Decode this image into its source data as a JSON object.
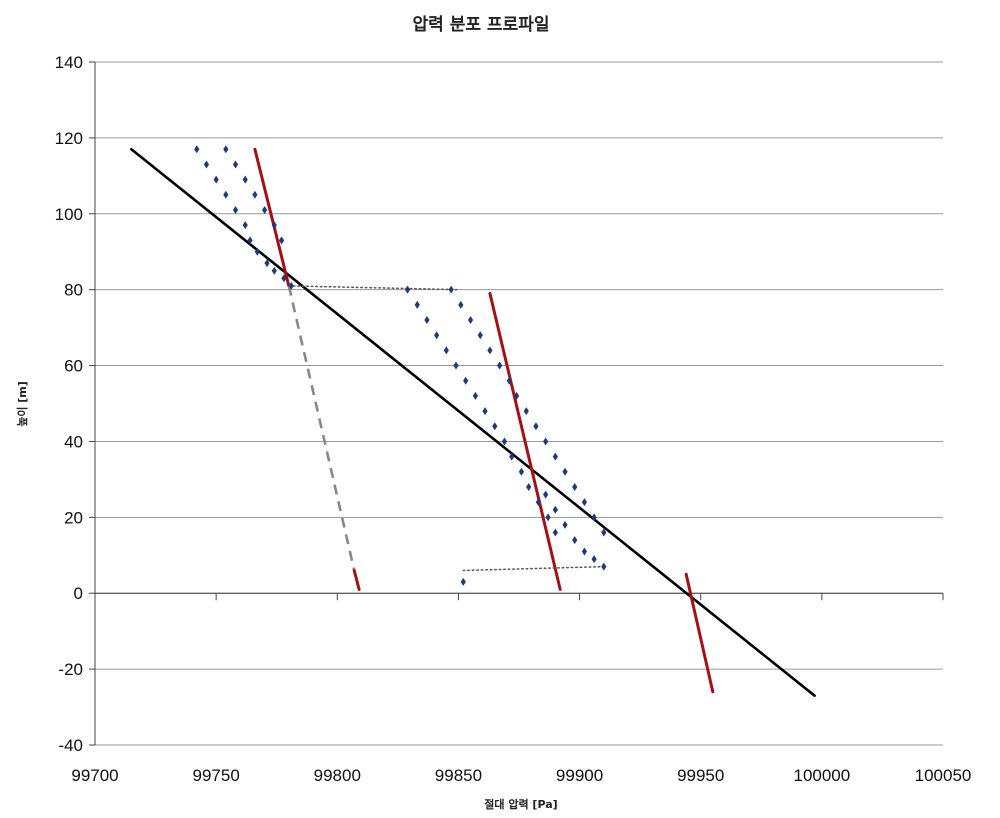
{
  "chart_data": {
    "type": "scatter",
    "title": "압력 분포 프로파일",
    "xlabel": "절대 압력 [Pa]",
    "ylabel": "높이 [m]",
    "xlim": [
      99700,
      100050
    ],
    "ylim": [
      -40,
      140
    ],
    "x_ticks": [
      99700,
      99750,
      99800,
      99850,
      99900,
      99950,
      100000,
      100050
    ],
    "y_ticks": [
      -40,
      -20,
      0,
      20,
      40,
      60,
      80,
      100,
      120,
      140
    ],
    "grid": "horizontal",
    "legend": "none",
    "colors": {
      "black_line": "#000000",
      "red_line": "#a50f15",
      "gray_dash": "#888888",
      "dot_markers": "#1f3a7a",
      "dotted_link": "#555555"
    },
    "series": [
      {
        "style": "line",
        "color": "#000000",
        "x": [
          99715,
          99997
        ],
        "y": [
          117,
          -27
        ]
      },
      {
        "style": "line",
        "color": "#a50f15",
        "x": [
          99766,
          99780
        ],
        "y": [
          117,
          81
        ]
      },
      {
        "style": "dashed",
        "color": "#888888",
        "x": [
          99780,
          99807
        ],
        "y": [
          81,
          6
        ]
      },
      {
        "style": "line",
        "color": "#a50f15",
        "x": [
          99807,
          99809
        ],
        "y": [
          6,
          1
        ]
      },
      {
        "style": "line",
        "color": "#a50f15",
        "x": [
          99863,
          99892
        ],
        "y": [
          79,
          1
        ]
      },
      {
        "style": "line",
        "color": "#a50f15",
        "x": [
          99944,
          99955
        ],
        "y": [
          5,
          -26
        ]
      },
      {
        "style": "dotted",
        "color": "#555555",
        "x": [
          99780,
          99850
        ],
        "y": [
          81,
          80
        ]
      },
      {
        "style": "dotted",
        "color": "#555555",
        "x": [
          99852,
          99910
        ],
        "y": [
          6,
          7
        ]
      },
      {
        "style": "markers",
        "color": "#1f3a7a",
        "x": [
          99742,
          99746,
          99750,
          99754,
          99758,
          99762,
          99764,
          99767,
          99771,
          99774,
          99778,
          99781
        ],
        "y": [
          117,
          113,
          109,
          105,
          101,
          97,
          93,
          90,
          87,
          85,
          83,
          81
        ]
      },
      {
        "style": "markers",
        "color": "#1f3a7a",
        "x": [
          99754,
          99758,
          99762,
          99766,
          99770,
          99774,
          99777
        ],
        "y": [
          117,
          113,
          109,
          105,
          101,
          97,
          93
        ]
      },
      {
        "style": "markers",
        "color": "#1f3a7a",
        "x": [
          99829,
          99833,
          99837,
          99841,
          99845,
          99849,
          99853,
          99857,
          99861,
          99865,
          99869,
          99872,
          99876,
          99879,
          99883,
          99887,
          99890
        ],
        "y": [
          80,
          76,
          72,
          68,
          64,
          60,
          56,
          52,
          48,
          44,
          40,
          36,
          32,
          28,
          24,
          20,
          16
        ]
      },
      {
        "style": "markers",
        "color": "#1f3a7a",
        "x": [
          99847,
          99851,
          99855,
          99859,
          99863,
          99867,
          99871,
          99874,
          99878,
          99882,
          99886,
          99890,
          99894,
          99898,
          99902,
          99906,
          99910
        ],
        "y": [
          80,
          76,
          72,
          68,
          64,
          60,
          56,
          52,
          48,
          44,
          40,
          36,
          32,
          28,
          24,
          20,
          16
        ]
      },
      {
        "style": "markers",
        "color": "#1f3a7a",
        "x": [
          99886,
          99890,
          99894,
          99898,
          99902,
          99906,
          99910
        ],
        "y": [
          26,
          22,
          18,
          14,
          11,
          9,
          7
        ]
      },
      {
        "style": "markers",
        "color": "#1f3a7a",
        "x": [
          99852
        ],
        "y": [
          3
        ]
      }
    ]
  }
}
